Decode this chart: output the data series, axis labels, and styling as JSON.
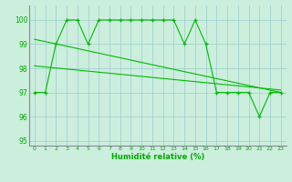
{
  "line1_x": [
    0,
    1,
    2,
    3,
    4,
    5,
    6,
    7,
    8,
    9,
    10,
    11,
    12,
    13,
    14,
    15,
    16,
    17,
    18,
    19,
    20,
    21,
    22,
    23
  ],
  "line1_y": [
    97,
    97,
    99,
    100,
    100,
    99,
    100,
    100,
    100,
    100,
    100,
    100,
    100,
    100,
    99,
    100,
    99,
    97,
    97,
    97,
    97,
    96,
    97,
    97
  ],
  "line2_x": [
    0,
    23
  ],
  "line2_y": [
    99.2,
    97.0
  ],
  "line3_x": [
    0,
    23
  ],
  "line3_y": [
    98.1,
    97.1
  ],
  "line_color": "#00bb00",
  "bg_color": "#cceedd",
  "grid_color": "#99cccc",
  "xlabel": "Humidité relative (%)",
  "ylim": [
    94.8,
    100.6
  ],
  "xlim": [
    -0.5,
    23.5
  ],
  "yticks": [
    95,
    96,
    97,
    98,
    99,
    100
  ],
  "xticks": [
    0,
    1,
    2,
    3,
    4,
    5,
    6,
    7,
    8,
    9,
    10,
    11,
    12,
    13,
    14,
    15,
    16,
    17,
    18,
    19,
    20,
    21,
    22,
    23
  ],
  "xlabel_color": "#00aa00",
  "tick_color": "#00aa00",
  "marker": "+",
  "marker_size": 3.5,
  "linewidth": 0.8
}
